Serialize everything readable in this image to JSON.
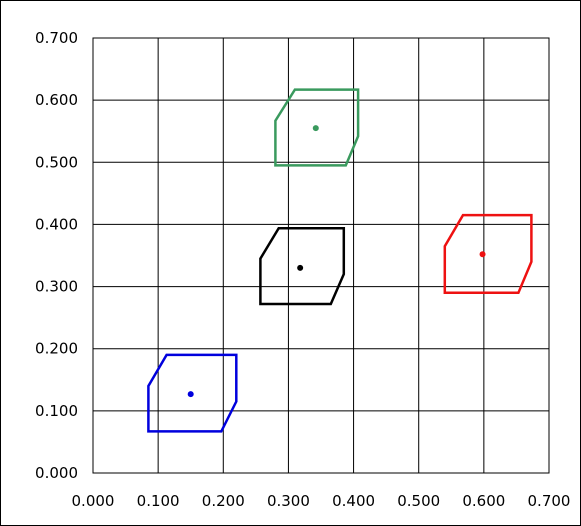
{
  "chart_data": {
    "type": "scatter",
    "title": "",
    "xlabel": "",
    "ylabel": "",
    "xlim": [
      0.0,
      0.7
    ],
    "ylim": [
      0.0,
      0.7
    ],
    "x_ticks": [
      "0.000",
      "0.100",
      "0.200",
      "0.300",
      "0.400",
      "0.500",
      "0.600",
      "0.700"
    ],
    "y_ticks": [
      "0.000",
      "0.100",
      "0.200",
      "0.300",
      "0.400",
      "0.500",
      "0.600",
      "0.700"
    ],
    "grid": true,
    "legend": "none",
    "series": [
      {
        "color": "#0000dd",
        "center": [
          0.15,
          0.127
        ],
        "polygon": [
          [
            0.113,
            0.19
          ],
          [
            0.22,
            0.19
          ],
          [
            0.22,
            0.115
          ],
          [
            0.197,
            0.067
          ],
          [
            0.085,
            0.067
          ],
          [
            0.085,
            0.14
          ]
        ]
      },
      {
        "color": "#000000",
        "center": [
          0.318,
          0.33
        ],
        "polygon": [
          [
            0.285,
            0.394
          ],
          [
            0.385,
            0.394
          ],
          [
            0.385,
            0.32
          ],
          [
            0.365,
            0.272
          ],
          [
            0.257,
            0.272
          ],
          [
            0.257,
            0.345
          ]
        ]
      },
      {
        "color": "#3a9a5e",
        "center": [
          0.342,
          0.555
        ],
        "polygon": [
          [
            0.31,
            0.617
          ],
          [
            0.407,
            0.617
          ],
          [
            0.407,
            0.542
          ],
          [
            0.388,
            0.495
          ],
          [
            0.28,
            0.495
          ],
          [
            0.28,
            0.567
          ]
        ]
      },
      {
        "color": "#ee1111",
        "center": [
          0.598,
          0.352
        ],
        "polygon": [
          [
            0.568,
            0.415
          ],
          [
            0.673,
            0.415
          ],
          [
            0.673,
            0.34
          ],
          [
            0.653,
            0.29
          ],
          [
            0.54,
            0.29
          ],
          [
            0.54,
            0.365
          ]
        ]
      }
    ]
  }
}
